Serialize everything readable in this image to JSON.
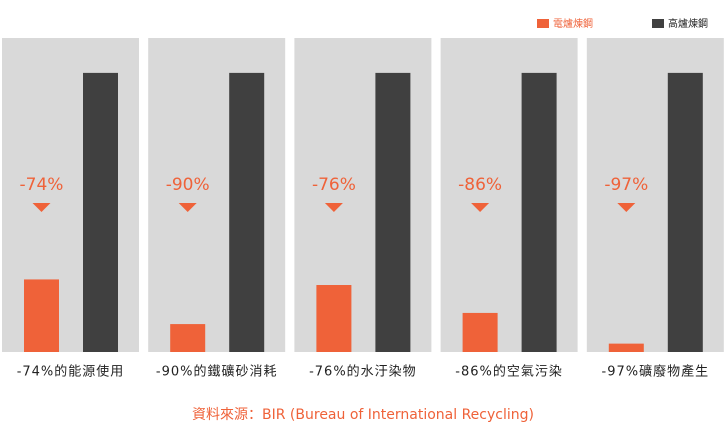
{
  "chart_data": {
    "type": "bar",
    "categories": [
      "-74%的能源使用",
      "-90%的鐵礦砂消耗",
      "-76%的水汙染物",
      "-86%的空氣污染",
      "-97%礦廢物產生"
    ],
    "series": [
      {
        "name": "電爐煉鋼",
        "color": "#ef6239",
        "values": [
          26,
          10,
          24,
          14,
          3
        ]
      },
      {
        "name": "高爐煉鋼",
        "color": "#404040",
        "values": [
          100,
          100,
          100,
          100,
          100
        ]
      }
    ],
    "annotations": [
      "-74%",
      "-90%",
      "-76%",
      "-86%",
      "-97%"
    ],
    "annotation_color": "#ef6239",
    "panel_color": "#d9d9d9",
    "ylim": [
      0,
      112.5
    ],
    "source": "資料來源：BIR (Bureau of International Recycling)",
    "legend": "top-right"
  }
}
